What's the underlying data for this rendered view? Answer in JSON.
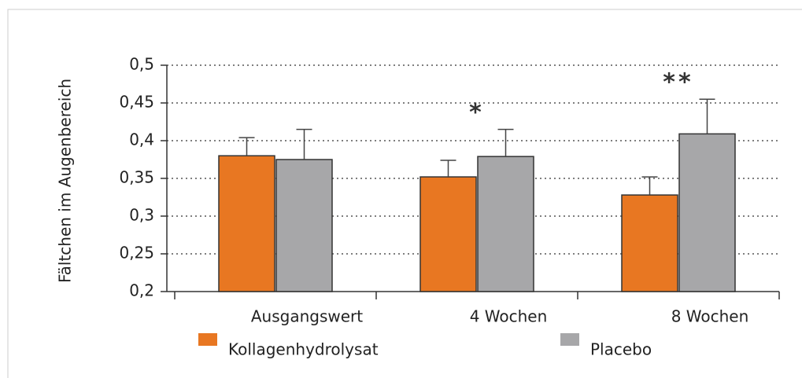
{
  "chart_data": {
    "type": "bar",
    "y_label": "Fältchen im Augenbereich",
    "categories": [
      "Ausgangswert",
      "4 Wochen",
      "8 Wochen"
    ],
    "series": [
      {
        "name": "Kollagenhydrolysat",
        "color": "#e87722",
        "values": [
          0.38,
          0.352,
          0.328
        ],
        "errors": [
          0.024,
          0.022,
          0.024
        ]
      },
      {
        "name": "Placebo",
        "color": "#a7a7a9",
        "values": [
          0.375,
          0.379,
          0.409
        ],
        "errors": [
          0.04,
          0.036,
          0.046
        ]
      }
    ],
    "annotations": [
      {
        "category": 1,
        "text": "*"
      },
      {
        "category": 2,
        "text": "**"
      }
    ],
    "ylim": [
      0.2,
      0.5
    ],
    "yticks": [
      {
        "value": 0.2,
        "label": "0,2"
      },
      {
        "value": 0.25,
        "label": "0,25"
      },
      {
        "value": 0.3,
        "label": "0,3"
      },
      {
        "value": 0.35,
        "label": "0,35"
      },
      {
        "value": 0.4,
        "label": "0,4"
      },
      {
        "value": 0.45,
        "label": "0,45"
      },
      {
        "value": 0.5,
        "label": "0,5"
      }
    ],
    "grid": true
  }
}
